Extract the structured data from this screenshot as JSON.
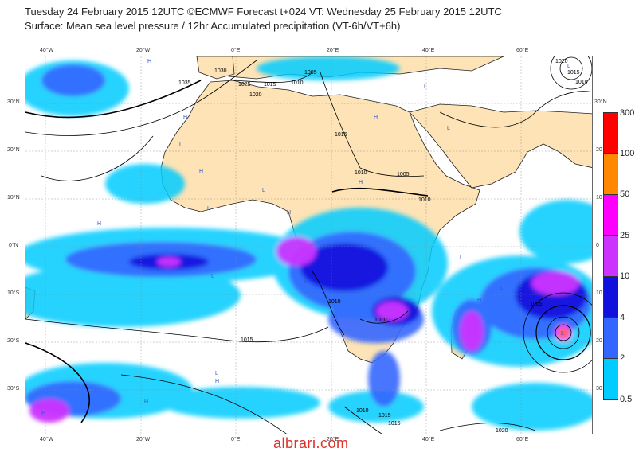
{
  "title_line1": "Tuesday 24 February 2015 12UTC ©ECMWF Forecast t+024 VT: Wednesday 25 February 2015 12UTC",
  "title_line2": "Surface: Mean sea level pressure / 12hr Accumulated precipitation (VT-6h/VT+6h)",
  "watermark": "albrari.com",
  "lon_labels": [
    "40°W",
    "20°W",
    "0°E",
    "20°E",
    "40°E",
    "60°E"
  ],
  "lat_labels": [
    "30°N",
    "20°N",
    "10°N",
    "0°N",
    "10°S",
    "20°S",
    "30°S"
  ],
  "lat_labels_right": [
    "30°N",
    "20",
    "10",
    "0",
    "10",
    "20",
    "30"
  ],
  "isobar_labels": [
    "1035",
    "1030",
    "1025",
    "1020",
    "1015",
    "1010",
    "1005",
    "1015",
    "1010",
    "1005",
    "1010",
    "1015",
    "1010",
    "1010",
    "1015",
    "1005",
    "1010",
    "1015",
    "1020",
    "1020",
    "1015",
    "1010"
  ],
  "pressure_centres": [
    "H",
    "H",
    "H",
    "H",
    "H",
    "L",
    "L",
    "L",
    "L",
    "L",
    "H",
    "H",
    "L",
    "L",
    "H",
    "H",
    "L",
    "H",
    "L",
    "L",
    "L",
    "H",
    "L"
  ],
  "colorbar": {
    "labels": [
      "300",
      "100",
      "50",
      "25",
      "10",
      "4",
      "2",
      "0.5"
    ],
    "colors": [
      "#ff0000",
      "#ff8800",
      "#ff00ff",
      "#cc33ff",
      "#1111dd",
      "#3366ff",
      "#00ccff"
    ]
  },
  "colors": {
    "ocean": "#ffffff",
    "land": "#fde3b5",
    "coast": "#222222",
    "isobar": "#000000",
    "high": "#3355cc",
    "low": "#3355cc"
  }
}
